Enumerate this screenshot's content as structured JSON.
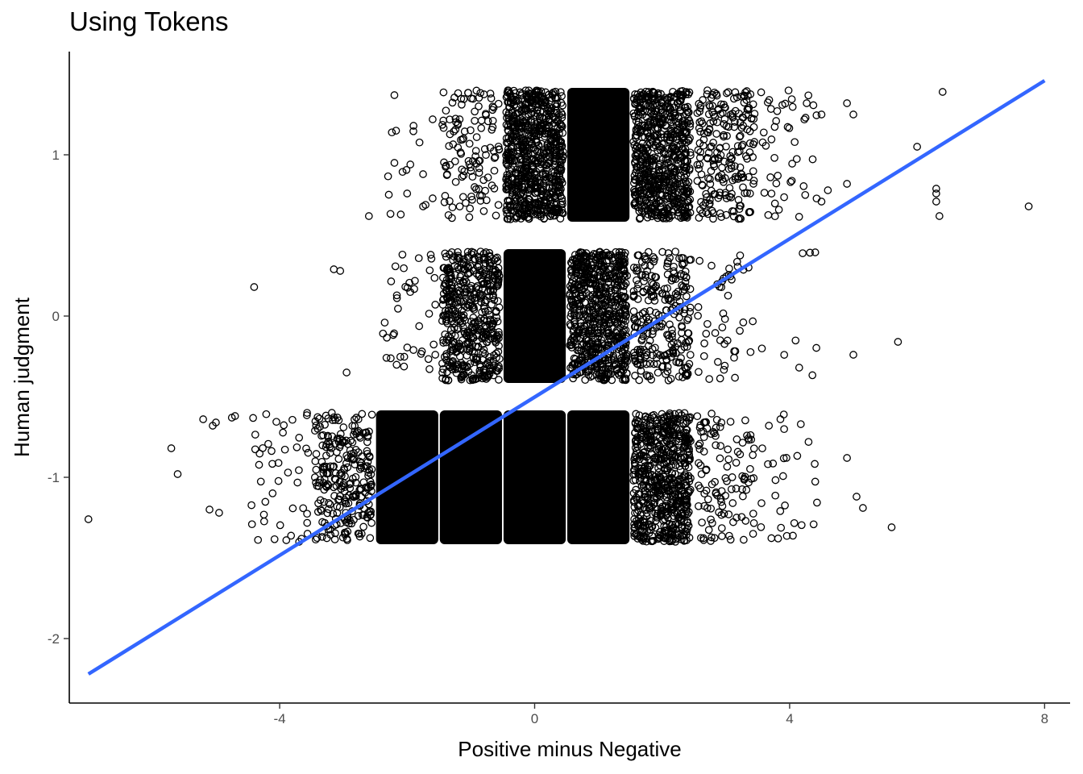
{
  "chart_data": {
    "type": "scatter",
    "title": "Using Tokens",
    "xlabel": "Positive minus Negative",
    "ylabel": "Human judgment",
    "xlim": [
      -7.3,
      8.4
    ],
    "ylim": [
      -2.4,
      1.64
    ],
    "xticks": [
      -4,
      0,
      4,
      8
    ],
    "yticks": [
      -2,
      -1,
      0,
      1
    ],
    "grid": false,
    "legend": "none",
    "point_style": "open-circle",
    "point_color": "#000000",
    "fit_line": {
      "color": "#3366ff",
      "x": [
        -7,
        8
      ],
      "y": [
        -2.22,
        1.46
      ]
    },
    "dense_blocks": [
      {
        "x": [
          -2.45,
          -1.55
        ],
        "y": [
          -1.4,
          -0.6
        ]
      },
      {
        "x": [
          -1.45,
          -0.55
        ],
        "y": [
          -1.4,
          -0.6
        ]
      },
      {
        "x": [
          -0.45,
          0.45
        ],
        "y": [
          -1.4,
          -0.6
        ]
      },
      {
        "x": [
          0.55,
          1.45
        ],
        "y": [
          -1.4,
          -0.6
        ]
      },
      {
        "x": [
          -0.45,
          0.45
        ],
        "y": [
          -0.4,
          0.4
        ]
      },
      {
        "x": [
          0.55,
          1.45
        ],
        "y": [
          0.6,
          1.4
        ]
      }
    ],
    "medium_clusters": [
      {
        "x": [
          1.55,
          2.45
        ],
        "y": [
          -1.4,
          -0.6
        ],
        "n": 650
      },
      {
        "x": [
          -1.45,
          -0.55
        ],
        "y": [
          -0.4,
          0.4
        ],
        "n": 500
      },
      {
        "x": [
          0.55,
          1.45
        ],
        "y": [
          -0.4,
          0.4
        ],
        "n": 700
      },
      {
        "x": [
          1.55,
          2.45
        ],
        "y": [
          -0.4,
          0.4
        ],
        "n": 260
      },
      {
        "x": [
          -0.45,
          0.45
        ],
        "y": [
          0.6,
          1.4
        ],
        "n": 750
      },
      {
        "x": [
          1.55,
          2.45
        ],
        "y": [
          0.6,
          1.4
        ],
        "n": 650
      },
      {
        "x": [
          -3.45,
          -2.55
        ],
        "y": [
          -1.4,
          -0.6
        ],
        "n": 260
      },
      {
        "x": [
          2.55,
          3.45
        ],
        "y": [
          0.6,
          1.4
        ],
        "n": 220
      },
      {
        "x": [
          -1.45,
          -0.55
        ],
        "y": [
          0.6,
          1.4
        ],
        "n": 120
      }
    ],
    "sparse_clusters": [
      {
        "x": [
          -4.45,
          -3.55
        ],
        "y": [
          -1.4,
          -0.6
        ],
        "n": 45
      },
      {
        "x": [
          2.55,
          3.45
        ],
        "y": [
          -1.4,
          -0.6
        ],
        "n": 110
      },
      {
        "x": [
          3.55,
          4.45
        ],
        "y": [
          -1.4,
          -0.6
        ],
        "n": 30
      },
      {
        "x": [
          -2.45,
          -1.55
        ],
        "y": [
          -0.4,
          0.4
        ],
        "n": 40
      },
      {
        "x": [
          2.55,
          3.45
        ],
        "y": [
          -0.4,
          0.4
        ],
        "n": 45
      },
      {
        "x": [
          3.55,
          4.45
        ],
        "y": [
          -0.4,
          0.4
        ],
        "n": 8
      },
      {
        "x": [
          3.55,
          4.45
        ],
        "y": [
          0.6,
          1.4
        ],
        "n": 45
      },
      {
        "x": [
          -2.45,
          -1.55
        ],
        "y": [
          0.6,
          1.4
        ],
        "n": 10
      }
    ],
    "outliers": [
      {
        "x": -7.0,
        "y": -1.26
      },
      {
        "x": -5.7,
        "y": -0.82
      },
      {
        "x": -5.6,
        "y": -0.98
      },
      {
        "x": -5.2,
        "y": -0.64
      },
      {
        "x": -5.1,
        "y": -1.2
      },
      {
        "x": -5.05,
        "y": -0.68
      },
      {
        "x": -5.0,
        "y": -0.66
      },
      {
        "x": -4.95,
        "y": -1.22
      },
      {
        "x": -4.75,
        "y": -0.63
      },
      {
        "x": -4.7,
        "y": -0.62
      },
      {
        "x": -4.4,
        "y": 0.18
      },
      {
        "x": -3.15,
        "y": 0.29
      },
      {
        "x": -3.05,
        "y": 0.28
      },
      {
        "x": -2.95,
        "y": -0.35
      },
      {
        "x": -2.6,
        "y": 0.62
      },
      {
        "x": -2.2,
        "y": 1.37
      },
      {
        "x": -2.2,
        "y": 0.95
      },
      {
        "x": -2.1,
        "y": 0.63
      },
      {
        "x": -2.0,
        "y": 0.76
      },
      {
        "x": -1.95,
        "y": 0.94
      },
      {
        "x": -1.9,
        "y": 1.18
      },
      {
        "x": -1.75,
        "y": 0.88
      },
      {
        "x": -1.75,
        "y": 0.68
      },
      {
        "x": -1.6,
        "y": 1.22
      },
      {
        "x": -1.6,
        "y": 0.73
      },
      {
        "x": 4.5,
        "y": 0.71
      },
      {
        "x": 4.6,
        "y": 0.78
      },
      {
        "x": 4.9,
        "y": 1.32
      },
      {
        "x": 4.9,
        "y": 0.82
      },
      {
        "x": 5.0,
        "y": 1.25
      },
      {
        "x": 5.0,
        "y": -0.24
      },
      {
        "x": 4.9,
        "y": -0.88
      },
      {
        "x": 5.05,
        "y": -1.12
      },
      {
        "x": 5.15,
        "y": -1.19
      },
      {
        "x": 5.6,
        "y": -1.31
      },
      {
        "x": 5.7,
        "y": -0.16
      },
      {
        "x": 6.0,
        "y": 1.05
      },
      {
        "x": 6.3,
        "y": 0.79
      },
      {
        "x": 6.3,
        "y": 0.76
      },
      {
        "x": 6.3,
        "y": 0.71
      },
      {
        "x": 6.35,
        "y": 0.62
      },
      {
        "x": 6.4,
        "y": 1.39
      },
      {
        "x": 7.75,
        "y": 0.68
      },
      {
        "x": 4.5,
        "y": 1.25
      },
      {
        "x": 4.15,
        "y": -0.32
      }
    ]
  }
}
